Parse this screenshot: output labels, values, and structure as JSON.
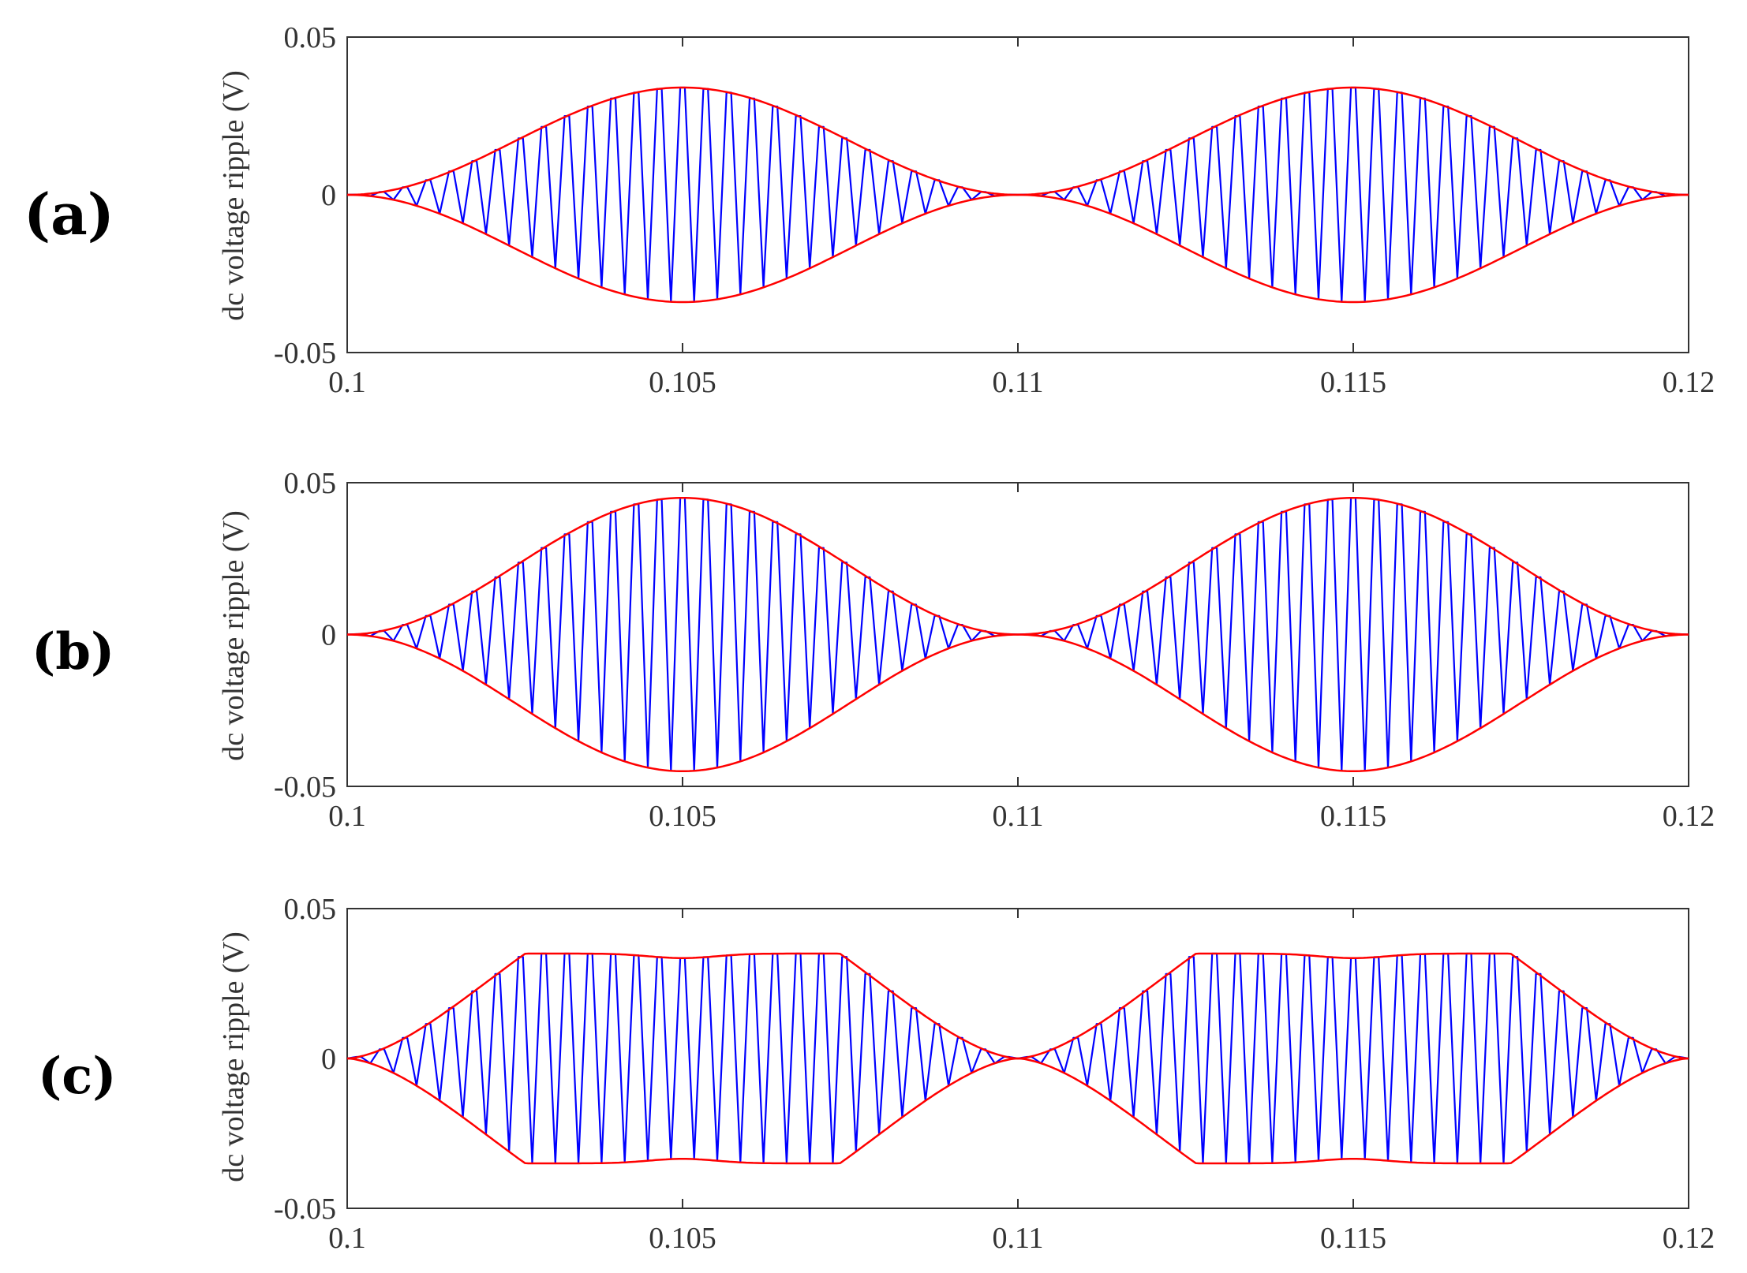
{
  "figure": {
    "panels": [
      "(a)",
      "(b)",
      "(c)"
    ]
  },
  "colors": {
    "signal": "#0000ff",
    "envelope": "#ff0000",
    "axis": "#333333"
  },
  "chart_data": [
    {
      "type": "line",
      "panel": "(a)",
      "xlabel": "",
      "ylabel": "dc voltage ripple (V)",
      "xlim": [
        0.1,
        0.12
      ],
      "ylim": [
        -0.05,
        0.05
      ],
      "xticks": [
        "0.1",
        "0.105",
        "0.11",
        "0.115",
        "0.12"
      ],
      "yticks": [
        "0.05",
        "0",
        "-0.05"
      ],
      "envelope_shape": "sine",
      "envelope_peak": 0.034,
      "envelope_period": 0.01,
      "carrier_cycles_per_envelope_period": 29,
      "series": [
        {
          "role": "signal",
          "color": "#0000ff"
        },
        {
          "role": "envelope",
          "color": "#ff0000"
        }
      ],
      "envelope_points": {
        "x": [
          0.1,
          0.101,
          0.102,
          0.103,
          0.104,
          0.105,
          0.106,
          0.107,
          0.108,
          0.109,
          0.11,
          0.111,
          0.112,
          0.113,
          0.114,
          0.115,
          0.116,
          0.117,
          0.118,
          0.119,
          0.12
        ],
        "y": [
          0.0,
          0.0033,
          0.0121,
          0.0227,
          0.0307,
          0.034,
          0.0307,
          0.0227,
          0.0121,
          0.0033,
          0.0,
          0.0033,
          0.0121,
          0.0227,
          0.0307,
          0.034,
          0.0307,
          0.0227,
          0.0121,
          0.0033,
          0.0
        ]
      }
    },
    {
      "type": "line",
      "panel": "(b)",
      "xlabel": "",
      "ylabel": "dc voltage ripple (V)",
      "xlim": [
        0.1,
        0.12
      ],
      "ylim": [
        -0.05,
        0.05
      ],
      "xticks": [
        "0.1",
        "0.105",
        "0.11",
        "0.115",
        "0.12"
      ],
      "yticks": [
        "0.05",
        "0",
        "-0.05"
      ],
      "envelope_shape": "sine",
      "envelope_peak": 0.045,
      "envelope_period": 0.01,
      "carrier_cycles_per_envelope_period": 29,
      "series": [
        {
          "role": "signal",
          "color": "#0000ff"
        },
        {
          "role": "envelope",
          "color": "#ff0000"
        }
      ],
      "envelope_points": {
        "x": [
          0.1,
          0.101,
          0.102,
          0.103,
          0.104,
          0.105,
          0.106,
          0.107,
          0.108,
          0.109,
          0.11,
          0.111,
          0.112,
          0.113,
          0.114,
          0.115,
          0.116,
          0.117,
          0.118,
          0.119,
          0.12
        ],
        "y": [
          0.0,
          0.0043,
          0.016,
          0.03,
          0.0407,
          0.045,
          0.0407,
          0.03,
          0.016,
          0.0043,
          0.0,
          0.0043,
          0.016,
          0.03,
          0.0407,
          0.045,
          0.0407,
          0.03,
          0.016,
          0.0043,
          0.0
        ]
      }
    },
    {
      "type": "line",
      "panel": "(c)",
      "xlabel": "",
      "ylabel": "dc voltage ripple (V)",
      "xlim": [
        0.1,
        0.12
      ],
      "ylim": [
        -0.05,
        0.05
      ],
      "xticks": [
        "0.1",
        "0.105",
        "0.11",
        "0.115",
        "0.12"
      ],
      "yticks": [
        "0.05",
        "0",
        "-0.05"
      ],
      "envelope_shape": "flat-top",
      "envelope_peak": 0.035,
      "envelope_mid_dip": 0.0335,
      "envelope_period": 0.01,
      "carrier_cycles_per_envelope_period": 29,
      "series": [
        {
          "role": "signal",
          "color": "#0000ff"
        },
        {
          "role": "envelope",
          "color": "#ff0000"
        }
      ],
      "envelope_points": {
        "x": [
          0.1,
          0.101,
          0.102,
          0.103,
          0.104,
          0.105,
          0.106,
          0.107,
          0.108,
          0.109,
          0.11,
          0.111,
          0.112,
          0.113,
          0.114,
          0.115,
          0.116,
          0.117,
          0.118,
          0.119,
          0.12
        ],
        "y": [
          0.0,
          0.0104,
          0.024,
          0.0337,
          0.0348,
          0.0335,
          0.0348,
          0.0337,
          0.024,
          0.0104,
          0.0,
          0.0104,
          0.024,
          0.0337,
          0.0348,
          0.0335,
          0.0348,
          0.0337,
          0.024,
          0.0104,
          0.0
        ]
      }
    }
  ]
}
